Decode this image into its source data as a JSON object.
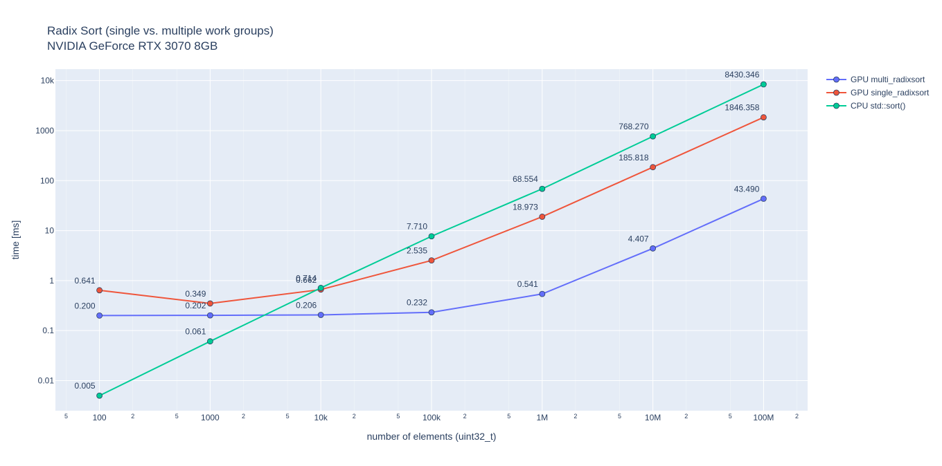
{
  "chart_data": {
    "type": "line",
    "title": "Radix Sort (single vs. multiple work groups)",
    "subtitle": "NVIDIA GeForce RTX 3070 8GB",
    "xlabel": "number of elements (uint32_t)",
    "ylabel": "time [ms]",
    "x_scale": "log",
    "y_scale": "log",
    "x": [
      100,
      1000,
      10000,
      100000,
      1000000,
      10000000,
      100000000
    ],
    "x_tick_labels": [
      "100",
      "1000",
      "10k",
      "100k",
      "1M",
      "10M",
      "100M"
    ],
    "y_tick_values": [
      0.01,
      0.1,
      1,
      10,
      100,
      1000,
      10000
    ],
    "y_tick_labels": [
      "0.01",
      "0.1",
      "1",
      "10",
      "100",
      "1000",
      "10k"
    ],
    "minor_tick_labels": [
      "2",
      "5"
    ],
    "xlim": [
      40,
      250000000
    ],
    "ylim": [
      0.0025,
      17000
    ],
    "grid": true,
    "legend_position": "top-right",
    "series": [
      {
        "name": "GPU multi_radixsort",
        "color": "#636efa",
        "values": [
          0.2,
          0.202,
          0.206,
          0.232,
          0.541,
          4.407,
          43.49
        ],
        "labels": [
          "0.200",
          "0.202",
          "0.206",
          "0.232",
          "0.541",
          "4.407",
          "43.490"
        ]
      },
      {
        "name": "GPU single_radixsort",
        "color": "#ef553b",
        "values": [
          0.641,
          0.349,
          0.662,
          2.535,
          18.973,
          185.818,
          1846.358
        ],
        "labels": [
          "0.641",
          "0.349",
          "0.662",
          "2.535",
          "18.973",
          "185.818",
          "1846.358"
        ]
      },
      {
        "name": "CPU std::sort()",
        "color": "#00cc96",
        "values": [
          0.005,
          0.061,
          0.714,
          7.71,
          68.554,
          768.27,
          8430.346
        ],
        "labels": [
          "0.005",
          "0.061",
          "0.714",
          "7.710",
          "68.554",
          "768.270",
          "8430.346"
        ]
      }
    ]
  }
}
